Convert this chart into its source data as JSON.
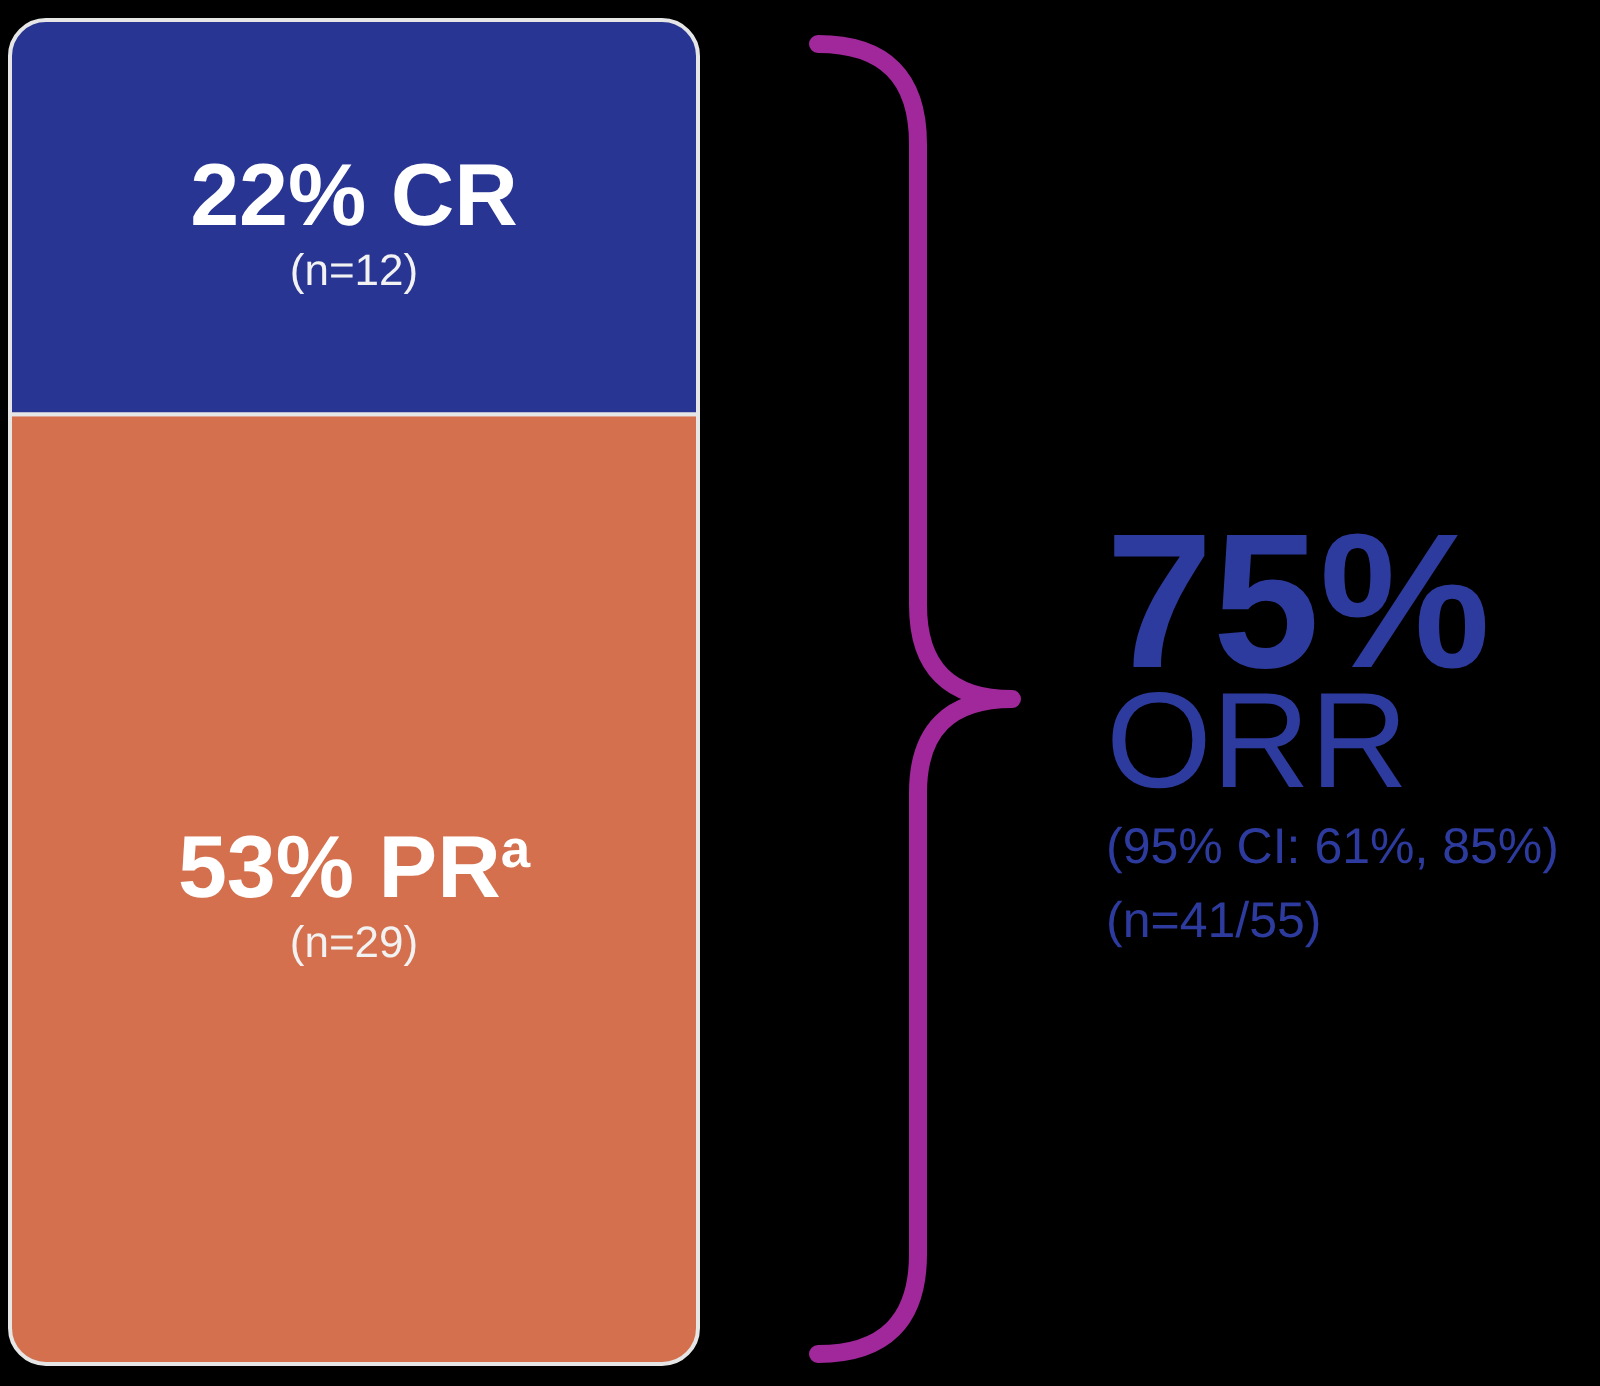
{
  "chart_data": {
    "type": "bar",
    "stacked": true,
    "categories": [
      null
    ],
    "series": [
      {
        "name": "PR$^{a}$",
        "color": "#d4704e",
        "values": [
          53
        ],
        "value_labels": [
          "53%"
        ]
      },
      {
        "name": "CR",
        "color": "#283593",
        "values": [
          22
        ],
        "value_labels": [
          "22%"
        ]
      }
    ],
    "totals": [
      "75%"
    ],
    "ylim": [
      0,
      75
    ],
    "tick_labels": false,
    "annotations": [
      "(n=12)",
      "(n=29)",
      "ORR",
      "(95% CI: 61%, 85%)",
      "(n=41/55)"
    ]
  }
}
